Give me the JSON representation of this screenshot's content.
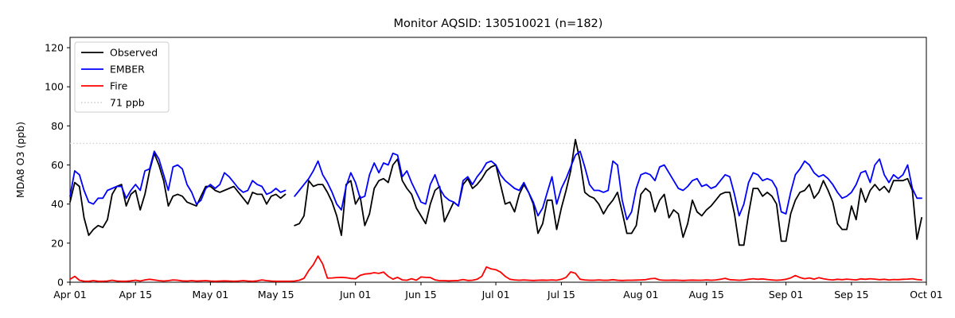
{
  "figure": {
    "title": "Monitor AQSID: 130510021 (n=182)",
    "y_axis": {
      "label": "MDA8 O3 (ppb)",
      "ticks": [
        0,
        20,
        40,
        60,
        80,
        100,
        120
      ]
    },
    "x_axis": {
      "ticks": [
        {
          "label": "Apr 01",
          "day": 0
        },
        {
          "label": "Apr 15",
          "day": 14
        },
        {
          "label": "May 01",
          "day": 30
        },
        {
          "label": "May 15",
          "day": 44
        },
        {
          "label": "Jun 01",
          "day": 61
        },
        {
          "label": "Jun 15",
          "day": 75
        },
        {
          "label": "Jul 01",
          "day": 91
        },
        {
          "label": "Jul 15",
          "day": 105
        },
        {
          "label": "Aug 01",
          "day": 122
        },
        {
          "label": "Aug 15",
          "day": 136
        },
        {
          "label": "Sep 01",
          "day": 153
        },
        {
          "label": "Sep 15",
          "day": 167
        },
        {
          "label": "Oct 01",
          "day": 183
        }
      ]
    },
    "legend": [
      {
        "label": "Observed",
        "color": "#000000",
        "style": "solid"
      },
      {
        "label": "EMBER",
        "color": "#0000ff",
        "style": "solid"
      },
      {
        "label": "Fire",
        "color": "#ff0000",
        "style": "solid"
      },
      {
        "label": "71 ppb",
        "color": "#d3d3d3",
        "style": "dotted"
      }
    ]
  },
  "chart_data": {
    "type": "line",
    "title": "Monitor AQSID: 130510021 (n=182)",
    "xlabel": "",
    "ylabel": "MDA8 O3 (ppb)",
    "ylim": [
      0,
      125
    ],
    "x_unit": "day",
    "x_start_label": "Apr 01",
    "x_end_label": "Oct 01",
    "n_days": 183,
    "n_observations": 182,
    "missing_day_index": 47,
    "legend_position": "upper left",
    "grid": false,
    "threshold_line": {
      "label": "71 ppb",
      "value": 71,
      "color": "#d3d3d3",
      "style": "dotted"
    },
    "series": [
      {
        "name": "Observed",
        "color": "#000000",
        "values": [
          41,
          51,
          49,
          33,
          24,
          27,
          29,
          28,
          32,
          45,
          49,
          50,
          39,
          45,
          47,
          37,
          45,
          57,
          66,
          60,
          52,
          39,
          44,
          45,
          44,
          41,
          40,
          39,
          44,
          49,
          49,
          47,
          46,
          47,
          48,
          49,
          46,
          43,
          40,
          46,
          45,
          45,
          40,
          44,
          45,
          43,
          45,
          null,
          29,
          30,
          34,
          52,
          49,
          50,
          50,
          46,
          41,
          34,
          24,
          50,
          52,
          40,
          44,
          29,
          35,
          48,
          52,
          53,
          51,
          60,
          63,
          52,
          48,
          45,
          38,
          34,
          30,
          40,
          47,
          49,
          31,
          36,
          41,
          39,
          50,
          53,
          48,
          50,
          53,
          57,
          59,
          60,
          50,
          40,
          41,
          36,
          45,
          50,
          46,
          40,
          25,
          30,
          42,
          42,
          27,
          38,
          47,
          57,
          73,
          62,
          46,
          44,
          43,
          40,
          35,
          39,
          42,
          46,
          36,
          25,
          25,
          29,
          45,
          48,
          46,
          36,
          42,
          45,
          33,
          37,
          35,
          23,
          30,
          42,
          36,
          34,
          37,
          39,
          42,
          45,
          46,
          46,
          35,
          19,
          19,
          35,
          48,
          48,
          44,
          46,
          44,
          40,
          21,
          21,
          35,
          42,
          46,
          47,
          50,
          43,
          46,
          52,
          47,
          41,
          30,
          27,
          27,
          39,
          32,
          48,
          41,
          47,
          50,
          47,
          49,
          46,
          52,
          52,
          52,
          53,
          47,
          22,
          33
        ]
      },
      {
        "name": "EMBER",
        "color": "#0000ff",
        "values": [
          44,
          57,
          55,
          47,
          41,
          40,
          43,
          43,
          47,
          48,
          49,
          49,
          43,
          47,
          50,
          47,
          57,
          58,
          67,
          63,
          55,
          47,
          59,
          60,
          58,
          50,
          46,
          40,
          42,
          48,
          50,
          48,
          50,
          56,
          54,
          51,
          48,
          46,
          47,
          52,
          50,
          49,
          45,
          46,
          48,
          46,
          47,
          null,
          44,
          47,
          50,
          53,
          57,
          62,
          55,
          51,
          46,
          40,
          37,
          49,
          56,
          51,
          43,
          44,
          55,
          61,
          56,
          61,
          60,
          66,
          65,
          54,
          57,
          51,
          46,
          41,
          40,
          50,
          55,
          48,
          44,
          42,
          41,
          39,
          52,
          54,
          50,
          54,
          57,
          61,
          62,
          60,
          55,
          52,
          50,
          48,
          47,
          51,
          46,
          41,
          34,
          38,
          46,
          54,
          40,
          48,
          53,
          59,
          65,
          67,
          59,
          50,
          47,
          47,
          46,
          47,
          62,
          60,
          42,
          32,
          36,
          48,
          55,
          56,
          55,
          52,
          59,
          60,
          56,
          52,
          48,
          47,
          49,
          52,
          53,
          49,
          50,
          48,
          49,
          52,
          55,
          54,
          45,
          34,
          40,
          51,
          56,
          55,
          52,
          53,
          52,
          48,
          36,
          35,
          46,
          55,
          58,
          62,
          60,
          56,
          54,
          55,
          53,
          50,
          46,
          43,
          44,
          46,
          50,
          56,
          57,
          51,
          60,
          63,
          55,
          51,
          55,
          53,
          55,
          60,
          48,
          43,
          43
        ]
      },
      {
        "name": "Fire",
        "color": "#ff0000",
        "values": [
          1.5,
          3,
          1,
          0.5,
          0.5,
          0.8,
          0.5,
          0.5,
          0.6,
          1,
          0.6,
          0.5,
          0.5,
          0.7,
          1,
          0.6,
          1.2,
          1.5,
          1.2,
          0.8,
          0.6,
          0.8,
          1.2,
          1,
          0.7,
          0.6,
          0.8,
          0.6,
          0.7,
          0.8,
          0.6,
          0.5,
          0.6,
          0.7,
          0.6,
          0.5,
          0.6,
          0.8,
          0.6,
          0.5,
          0.7,
          1.2,
          0.8,
          0.6,
          0.5,
          0.5,
          0.5,
          0.5,
          0.6,
          1,
          2,
          6,
          9,
          13.4,
          9.3,
          2.1,
          2.2,
          2.4,
          2.5,
          2.3,
          1.9,
          1.8,
          3.5,
          4.2,
          4.4,
          4.9,
          4.5,
          5.2,
          3,
          1.6,
          2.5,
          1.2,
          1,
          1.8,
          1,
          2.7,
          2.5,
          2.4,
          1.2,
          0.8,
          0.8,
          0.7,
          0.8,
          0.9,
          1.4,
          0.9,
          1,
          1.5,
          3,
          7.8,
          6.8,
          6.4,
          5.2,
          3,
          1.5,
          1.2,
          1,
          1.2,
          1,
          0.9,
          1,
          1.1,
          1,
          1.2,
          1,
          1.5,
          2.5,
          5.3,
          4.6,
          1.5,
          1.2,
          1,
          1,
          1.2,
          1,
          1,
          1.3,
          1,
          0.9,
          1,
          1,
          1.1,
          1.2,
          1.3,
          1.8,
          2,
          1.2,
          1,
          1,
          1.1,
          1,
          0.9,
          1,
          1.1,
          1,
          1,
          1.2,
          1,
          1.2,
          1.5,
          2,
          1.3,
          1.2,
          1,
          1.2,
          1.5,
          1.8,
          1.5,
          1.7,
          1.4,
          1.2,
          1,
          1.2,
          1.5,
          2.2,
          3.4,
          2.4,
          1.8,
          2.2,
          1.6,
          2.3,
          1.8,
          1.4,
          1.2,
          1.5,
          1.3,
          1.6,
          1.4,
          1.2,
          1.7,
          1.5,
          1.8,
          1.6,
          1.3,
          1.5,
          1.2,
          1.4,
          1.3,
          1.5,
          1.6,
          1.8,
          1.4,
          1.2
        ]
      }
    ]
  }
}
